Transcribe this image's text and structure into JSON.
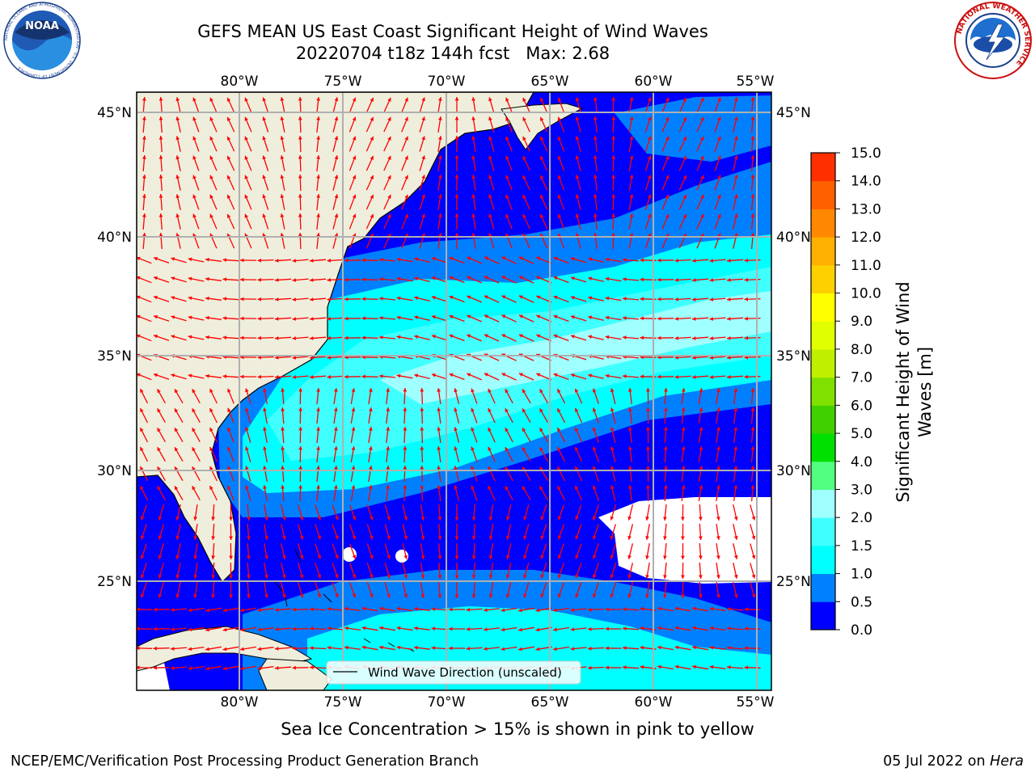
{
  "header": {
    "title_line1": "GEFS MEAN US East Coast Significant Height of Wind Waves",
    "title_line2": "20220704 t18z 144h fcst   Max: 2.68"
  },
  "logos": {
    "noaa_text": "NOAA",
    "noaa_ring_text": "NATIONAL OCEANIC AND ATMOSPHERIC ADMINISTRATION · U.S. DEPARTMENT OF COMMERCE",
    "nws_ring_text": "NATIONAL WEATHER SERVICE"
  },
  "map": {
    "lon_ticks": [
      "80°W",
      "75°W",
      "70°W",
      "65°W",
      "60°W",
      "55°W"
    ],
    "lat_ticks": [
      "45°N",
      "40°N",
      "35°N",
      "30°N",
      "25°N"
    ],
    "legend_label": "Wind Wave Direction (unscaled)",
    "colors": {
      "land": "#efeedc",
      "band_0_0_5": "#0000ff",
      "band_0_5_1": "#0080ff",
      "band_1_1_5": "#00ffff",
      "band_1_5_2": "#40ffff",
      "band_2_3": "#a0ffff",
      "arrow": "#ff0000",
      "grid": "#b0b0b0"
    }
  },
  "colorbar": {
    "label": "Significant Height of Wind Waves [m]",
    "label_line1": "Significant Height of Wind",
    "label_line2": "Waves [m]",
    "ticks": [
      "0.0",
      "0.5",
      "1.0",
      "1.5",
      "2.0",
      "3.0",
      "4.0",
      "5.0",
      "6.0",
      "7.0",
      "8.0",
      "9.0",
      "10.0",
      "11.0",
      "12.0",
      "13.0",
      "14.0",
      "15.0"
    ],
    "colors": [
      "#0000ff",
      "#0080ff",
      "#00ffff",
      "#40ffff",
      "#a0ffff",
      "#52ff80",
      "#00e000",
      "#40d000",
      "#80e000",
      "#c0f000",
      "#e0ff00",
      "#ffff00",
      "#ffd000",
      "#ffb000",
      "#ff8800",
      "#ff6000",
      "#ff3000",
      "#ff0000"
    ]
  },
  "footer": {
    "subtitle": "Sea Ice Concentration > 15% is shown in pink to yellow",
    "left": "NCEP/EMC/Verification Post Processing Product Generation Branch",
    "right_date": "05 Jul 2022 on",
    "right_host": "Hera"
  }
}
